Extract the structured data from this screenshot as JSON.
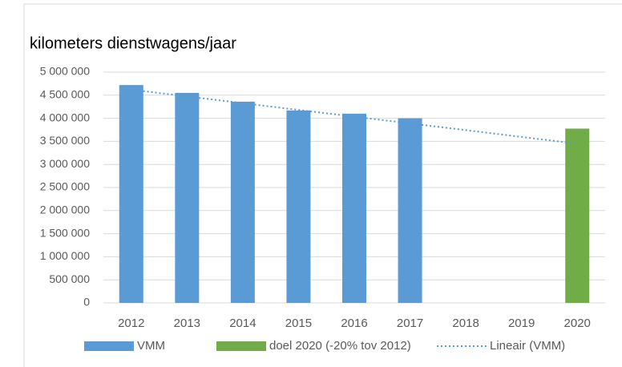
{
  "chart_data": {
    "type": "bar",
    "title": "kilometers dienstwagens/jaar",
    "categories": [
      "2012",
      "2013",
      "2014",
      "2015",
      "2016",
      "2017",
      "2018",
      "2019",
      "2020"
    ],
    "series": [
      {
        "name": "VMM",
        "color": "#5b9bd5",
        "values": [
          4720000,
          4550000,
          4360000,
          4170000,
          4100000,
          4000000,
          null,
          null,
          null
        ]
      },
      {
        "name": "doel 2020 (-20% tov 2012)",
        "color": "#70ad47",
        "values": [
          null,
          null,
          null,
          null,
          null,
          null,
          null,
          null,
          3776000
        ]
      },
      {
        "name": "Lineair (VMM)",
        "color": "#5b9bd5",
        "type": "line",
        "dashed": true,
        "values": [
          4620000,
          4474000,
          4328000,
          4181000,
          4035000,
          3889000,
          3743000,
          3596000,
          3450000
        ]
      }
    ],
    "ylim": [
      0,
      5000000
    ],
    "yticks": [
      {
        "value": 0,
        "label": "0"
      },
      {
        "value": 500000,
        "label": "500 000"
      },
      {
        "value": 1000000,
        "label": "1 000 000"
      },
      {
        "value": 1500000,
        "label": "1 500 000"
      },
      {
        "value": 2000000,
        "label": "2 000 000"
      },
      {
        "value": 2500000,
        "label": "2 500 000"
      },
      {
        "value": 3000000,
        "label": "3 000 000"
      },
      {
        "value": 3500000,
        "label": "3 500 000"
      },
      {
        "value": 4000000,
        "label": "4 000 000"
      },
      {
        "value": 4500000,
        "label": "4 500 000"
      },
      {
        "value": 5000000,
        "label": "5 000 000"
      }
    ],
    "grid": true,
    "legend": "bottom"
  }
}
